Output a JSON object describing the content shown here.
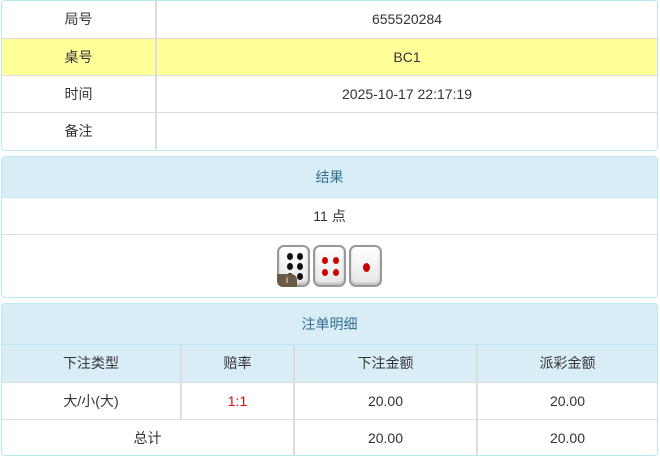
{
  "info": {
    "rows": [
      {
        "label": "局号",
        "value": "655520284"
      },
      {
        "label": "桌号",
        "value": "BC1"
      },
      {
        "label": "时间",
        "value": "2025-10-17 22:17:19"
      },
      {
        "label": "备注",
        "value": ""
      }
    ]
  },
  "result": {
    "title": "结果",
    "points": "11 点",
    "dice": [
      6,
      4,
      1
    ],
    "info_badge": "i"
  },
  "bets": {
    "title": "注单明细",
    "headers": [
      "下注类型",
      "赔率",
      "下注金额",
      "派彩金额"
    ],
    "rows": [
      {
        "type": "大/小(大)",
        "odds": "1:1",
        "amount": "20.00",
        "payout": "20.00"
      }
    ],
    "total": {
      "label": "总计",
      "amount": "20.00",
      "payout": "20.00"
    }
  },
  "colors": {
    "highlight": "#ffff99",
    "header_bg": "#d9edf7",
    "odds": "#ee0000"
  }
}
